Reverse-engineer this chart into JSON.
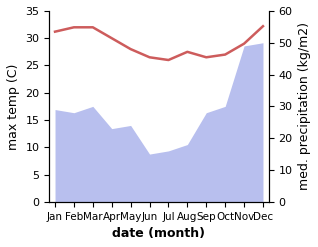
{
  "months": [
    "Jan",
    "Feb",
    "Mar",
    "Apr",
    "May",
    "Jun",
    "Jul",
    "Aug",
    "Sep",
    "Oct",
    "Nov",
    "Dec"
  ],
  "temperature": [
    31.2,
    32.0,
    32.0,
    30.0,
    28.0,
    26.5,
    26.0,
    27.5,
    26.5,
    27.0,
    29.0,
    32.2
  ],
  "precipitation": [
    29.0,
    28.0,
    30.0,
    23.0,
    24.0,
    15.0,
    16.0,
    18.0,
    28.0,
    30.0,
    49.0,
    50.0
  ],
  "temp_color": "#cd5c5c",
  "precip_color": "#b8bfee",
  "temp_ylim": [
    0,
    35
  ],
  "precip_ylim": [
    0,
    60
  ],
  "temp_yticks": [
    0,
    5,
    10,
    15,
    20,
    25,
    30,
    35
  ],
  "precip_yticks": [
    0,
    10,
    20,
    30,
    40,
    50,
    60
  ],
  "xlabel": "date (month)",
  "ylabel_left": "max temp (C)",
  "ylabel_right": "med. precipitation (kg/m2)",
  "background_color": "#ffffff",
  "label_fontsize": 9
}
